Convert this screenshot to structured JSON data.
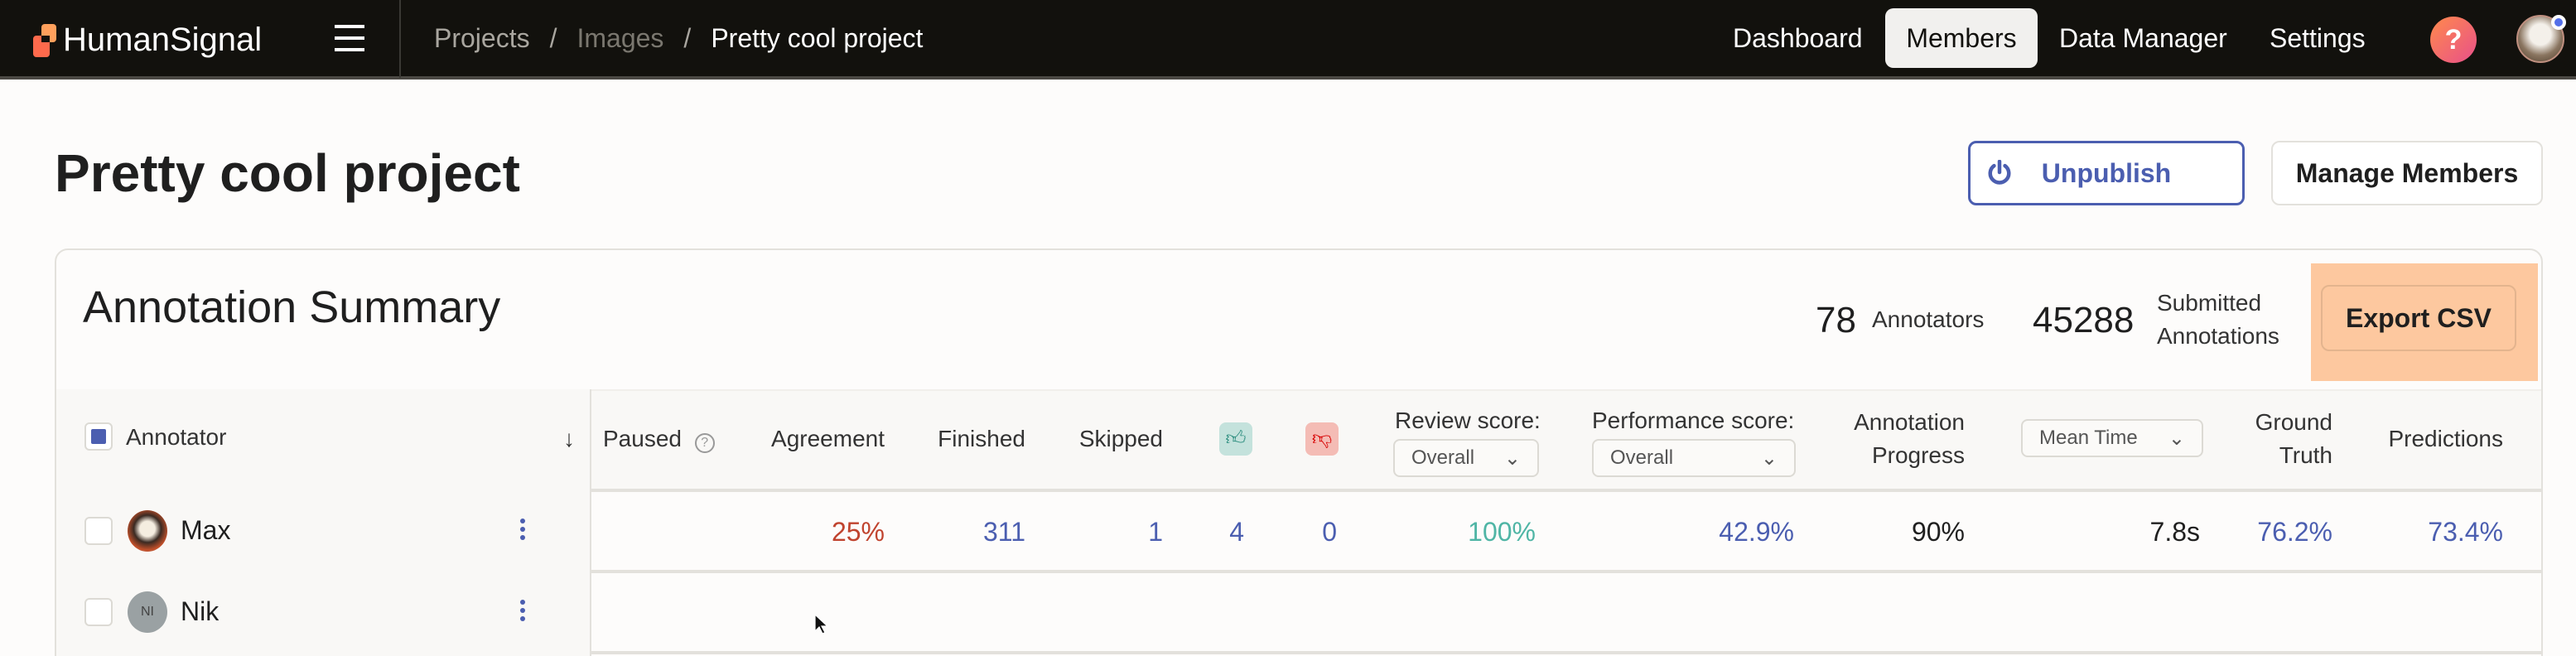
{
  "nav": {
    "brand": "HumanSignal",
    "breadcrumbs": [
      "Projects",
      "Images",
      "Pretty cool project"
    ],
    "links": [
      {
        "label": "Dashboard"
      },
      {
        "label": "Members",
        "active": true
      },
      {
        "label": "Data Manager"
      },
      {
        "label": "Settings"
      }
    ],
    "help_icon": "?"
  },
  "page": {
    "title": "Pretty cool project",
    "unpublish_label": "Unpublish",
    "manage_members_label": "Manage Members"
  },
  "summary": {
    "title": "Annotation Summary",
    "annotators_count": "78",
    "annotators_label": "Annotators",
    "submitted_count": "45288",
    "submitted_label_1": "Submitted",
    "submitted_label_2": "Annotations",
    "export_label": "Export CSV"
  },
  "table": {
    "headers": {
      "annotator": "Annotator",
      "paused": "Paused",
      "agreement": "Agreement",
      "finished": "Finished",
      "skipped": "Skipped",
      "review_score": "Review score:",
      "review_select": "Overall",
      "performance_score": "Performance score:",
      "performance_select": "Overall",
      "progress_1": "Annotation",
      "progress_2": "Progress",
      "mean_time_select": "Mean Time",
      "ground_truth_1": "Ground",
      "ground_truth_2": "Truth",
      "predictions": "Predictions"
    },
    "rows": [
      {
        "name": "Max",
        "agreement": "25%",
        "finished": "311",
        "skipped": "1",
        "thumbs_up": "4",
        "thumbs_down": "0",
        "review_score": "100%",
        "performance_score": "42.9%",
        "progress": "90%",
        "mean_time": "7.8s",
        "ground_truth": "76.2%",
        "predictions": "73.4%"
      },
      {
        "name": "Nik",
        "initials": "NI"
      }
    ]
  },
  "colors": {
    "accent": "#4b5eb0",
    "agreement_low": "#c0432e",
    "review_good": "#4fb5a5",
    "export_highlight": "#fdc89f",
    "navbar": "#12110d"
  }
}
